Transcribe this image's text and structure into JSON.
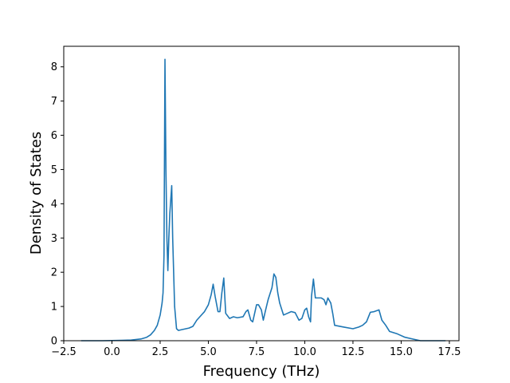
{
  "chart_data": {
    "type": "line",
    "title": "",
    "xlabel": "Frequency (THz)",
    "ylabel": "Density of States",
    "xlim": [
      -2.5,
      18.0
    ],
    "ylim": [
      0,
      8.6
    ],
    "grid": false,
    "legend": "none",
    "x_ticks": [
      -2.5,
      0.0,
      2.5,
      5.0,
      7.5,
      10.0,
      12.5,
      15.0,
      17.5
    ],
    "x_tick_labels": [
      "−2.5",
      "0.0",
      "2.5",
      "5.0",
      "7.5",
      "10.0",
      "12.5",
      "15.0",
      "17.5"
    ],
    "y_ticks": [
      0,
      1,
      2,
      3,
      4,
      5,
      6,
      7,
      8
    ],
    "y_tick_labels": [
      "0",
      "1",
      "2",
      "3",
      "4",
      "5",
      "6",
      "7",
      "8"
    ],
    "series": [
      {
        "color": "#1f77b4",
        "x": [
          -1.6,
          -0.5,
          0.5,
          1.0,
          1.5,
          1.8,
          2.0,
          2.2,
          2.35,
          2.5,
          2.6,
          2.65,
          2.7,
          2.75,
          2.8,
          2.85,
          2.9,
          2.95,
          3.0,
          3.1,
          3.15,
          3.25,
          3.35,
          3.45,
          3.6,
          4.0,
          4.2,
          4.4,
          4.8,
          5.0,
          5.15,
          5.25,
          5.35,
          5.5,
          5.6,
          5.7,
          5.8,
          5.9,
          6.1,
          6.3,
          6.5,
          6.8,
          6.95,
          7.05,
          7.2,
          7.3,
          7.4,
          7.5,
          7.6,
          7.75,
          7.85,
          7.95,
          8.1,
          8.3,
          8.4,
          8.5,
          8.6,
          8.7,
          8.9,
          9.1,
          9.3,
          9.5,
          9.7,
          9.85,
          10.0,
          10.1,
          10.2,
          10.3,
          10.35,
          10.45,
          10.55,
          10.7,
          10.85,
          11.0,
          11.1,
          11.2,
          11.35,
          11.45,
          11.55,
          12.0,
          12.5,
          12.8,
          13.0,
          13.2,
          13.4,
          13.6,
          13.85,
          14.0,
          14.2,
          14.4,
          14.8,
          15.2,
          15.6,
          16.0,
          17.3
        ],
        "y": [
          0.0,
          0.0,
          0.01,
          0.02,
          0.05,
          0.1,
          0.17,
          0.3,
          0.45,
          0.75,
          1.1,
          1.4,
          2.5,
          8.22,
          5.0,
          3.0,
          2.05,
          3.0,
          3.7,
          4.53,
          3.0,
          1.0,
          0.35,
          0.3,
          0.32,
          0.37,
          0.42,
          0.6,
          0.85,
          1.05,
          1.35,
          1.65,
          1.3,
          0.85,
          0.85,
          1.4,
          1.83,
          0.8,
          0.65,
          0.7,
          0.67,
          0.7,
          0.85,
          0.9,
          0.6,
          0.55,
          0.8,
          1.05,
          1.05,
          0.9,
          0.6,
          0.85,
          1.2,
          1.55,
          1.95,
          1.85,
          1.4,
          1.1,
          0.75,
          0.8,
          0.85,
          0.82,
          0.6,
          0.65,
          0.9,
          0.95,
          0.7,
          0.55,
          1.3,
          1.8,
          1.25,
          1.25,
          1.25,
          1.2,
          1.05,
          1.25,
          1.1,
          0.8,
          0.45,
          0.4,
          0.35,
          0.4,
          0.45,
          0.55,
          0.83,
          0.85,
          0.9,
          0.6,
          0.45,
          0.27,
          0.2,
          0.1,
          0.05,
          0.0,
          0.0
        ]
      }
    ]
  }
}
